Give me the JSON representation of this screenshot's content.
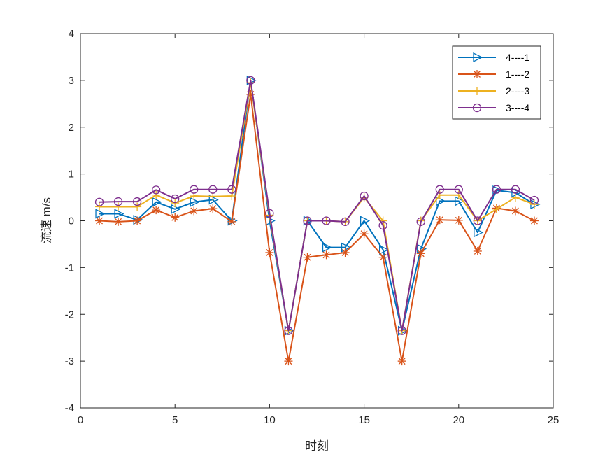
{
  "chart_data": {
    "type": "line",
    "title": "",
    "xlabel": "时刻",
    "ylabel": "流速 m/s",
    "xlim": [
      0,
      25
    ],
    "ylim": [
      -4,
      4
    ],
    "xticks": [
      0,
      5,
      10,
      15,
      20,
      25
    ],
    "yticks": [
      -4,
      -3,
      -2,
      -1,
      0,
      1,
      2,
      3,
      4
    ],
    "grid": false,
    "legend_position": "top-right",
    "x": [
      1,
      2,
      3,
      4,
      5,
      6,
      7,
      8,
      9,
      10,
      11,
      12,
      13,
      14,
      15,
      16,
      17,
      18,
      19,
      20,
      21,
      22,
      23,
      24
    ],
    "series": [
      {
        "name": "4----1",
        "color": "#0072BD",
        "marker": "triangle-right",
        "values": [
          0.15,
          0.15,
          0.02,
          0.4,
          0.25,
          0.4,
          0.45,
          0.0,
          3.0,
          0.0,
          -2.35,
          0.0,
          -0.57,
          -0.57,
          0.0,
          -0.62,
          -2.35,
          -0.6,
          0.42,
          0.42,
          -0.25,
          0.65,
          0.6,
          0.35
        ]
      },
      {
        "name": "1----2",
        "color": "#D95319",
        "marker": "asterisk",
        "values": [
          0.0,
          -0.02,
          0.0,
          0.23,
          0.07,
          0.21,
          0.26,
          -0.02,
          2.7,
          -0.68,
          -3.0,
          -0.78,
          -0.73,
          -0.68,
          -0.28,
          -0.78,
          -3.0,
          -0.7,
          0.02,
          0.01,
          -0.65,
          0.27,
          0.21,
          0.0
        ]
      },
      {
        "name": "2----3",
        "color": "#EDB120",
        "marker": "plus",
        "values": [
          0.3,
          0.3,
          0.3,
          0.55,
          0.38,
          0.53,
          0.52,
          0.53,
          2.95,
          0.12,
          -2.35,
          0.0,
          0.0,
          -0.02,
          0.5,
          0.0,
          -2.35,
          0.0,
          0.55,
          0.55,
          0.0,
          0.25,
          0.5,
          0.35
        ]
      },
      {
        "name": "3----4",
        "color": "#7E2F8E",
        "marker": "circle",
        "values": [
          0.4,
          0.41,
          0.41,
          0.66,
          0.47,
          0.67,
          0.67,
          0.67,
          3.0,
          0.16,
          -2.35,
          0.0,
          0.0,
          -0.02,
          0.53,
          -0.1,
          -2.35,
          -0.02,
          0.67,
          0.67,
          0.0,
          0.67,
          0.67,
          0.44
        ]
      }
    ]
  }
}
